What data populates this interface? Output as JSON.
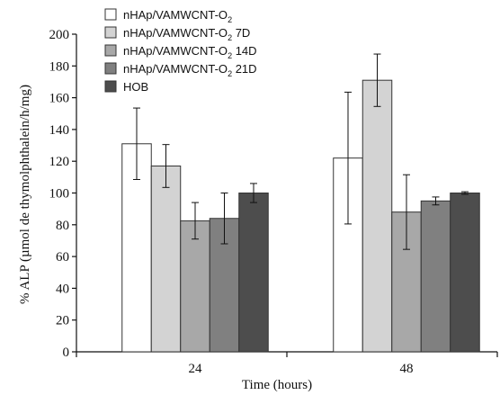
{
  "chart_data": {
    "type": "bar",
    "xlabel": "Time (hours)",
    "ylabel": "% ALP (µmol de thymolphthalein/h/mg)",
    "ylim": [
      0,
      200
    ],
    "yticks": [
      0,
      20,
      40,
      60,
      80,
      100,
      120,
      140,
      160,
      180,
      200
    ],
    "categories": [
      "24",
      "48"
    ],
    "legend_position": "top-left",
    "grid": false,
    "series": [
      {
        "name": "nHAp/VAMWCNT-O2",
        "name_main": "nHAp/VAMWCNT-O",
        "name_sub": "2",
        "name_suffix": "",
        "color": "#ffffff",
        "values": [
          131,
          122
        ],
        "errors": [
          22.5,
          41.5
        ]
      },
      {
        "name": "nHAp/VAMWCNT-O2 7D",
        "name_main": "nHAp/VAMWCNT-O",
        "name_sub": "2",
        "name_suffix": " 7D",
        "color": "#d3d3d3",
        "values": [
          117,
          171
        ],
        "errors": [
          13.5,
          16.5
        ]
      },
      {
        "name": "nHAp/VAMWCNT-O2 14D",
        "name_main": "nHAp/VAMWCNT-O",
        "name_sub": "2",
        "name_suffix": " 14D",
        "color": "#a8a8a8",
        "values": [
          82.5,
          88
        ],
        "errors": [
          11.5,
          23.5
        ]
      },
      {
        "name": "nHAp/VAMWCNT-O2 21D",
        "name_main": "nHAp/VAMWCNT-O",
        "name_sub": "2",
        "name_suffix": " 21D",
        "color": "#808080",
        "values": [
          84,
          95
        ],
        "errors": [
          16,
          2.5
        ]
      },
      {
        "name": "HOB",
        "name_main": "HOB",
        "name_sub": "",
        "name_suffix": "",
        "color": "#4d4d4d",
        "values": [
          100,
          100
        ],
        "errors": [
          6,
          0.8
        ]
      }
    ]
  }
}
